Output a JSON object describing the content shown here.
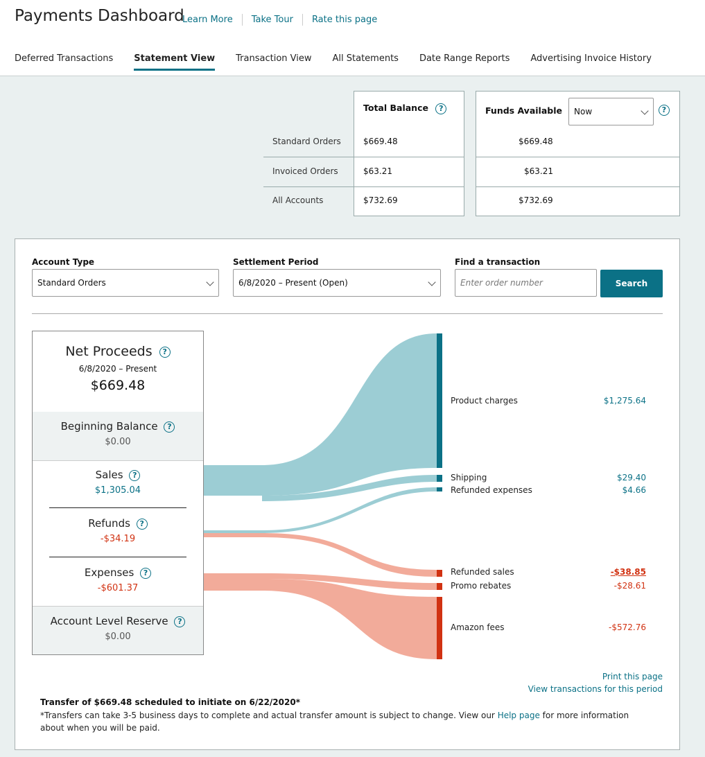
{
  "header": {
    "title": "Payments Dashboard",
    "links": [
      "Learn More",
      "Take Tour",
      "Rate this page"
    ],
    "tabs": [
      "Deferred Transactions",
      "Statement View",
      "Transaction View",
      "All Statements",
      "Date Range Reports",
      "Advertising Invoice History"
    ],
    "active_tab": "Statement View"
  },
  "balances": {
    "total_balance_label": "Total Balance",
    "funds_available_label": "Funds Available",
    "funds_select": "Now",
    "rows": [
      {
        "label": "Standard Orders",
        "total": "$669.48",
        "funds": "$669.48"
      },
      {
        "label": "Invoiced Orders",
        "total": "$63.21",
        "funds": "$63.21"
      },
      {
        "label": "All Accounts",
        "total": "$732.69",
        "funds": "$732.69"
      }
    ]
  },
  "filters": {
    "account_type_label": "Account Type",
    "account_type_value": "Standard Orders",
    "settlement_period_label": "Settlement Period",
    "settlement_period_value": "6/8/2020 – Present (Open)",
    "find_label": "Find a transaction",
    "find_placeholder": "Enter order number",
    "search_button": "Search"
  },
  "summary": {
    "net_proceeds_label": "Net Proceeds",
    "net_proceeds_period": "6/8/2020 – Present",
    "net_proceeds_value": "$669.48",
    "beginning_balance_label": "Beginning Balance",
    "beginning_balance_value": "$0.00",
    "sales_label": "Sales",
    "sales_value": "$1,305.04",
    "refunds_label": "Refunds",
    "refunds_value": "-$34.19",
    "expenses_label": "Expenses",
    "expenses_value": "-$601.37",
    "reserve_label": "Account Level Reserve",
    "reserve_value": "$0.00"
  },
  "breakdown": [
    {
      "label": "Product charges",
      "value": "$1,275.64"
    },
    {
      "label": "Shipping",
      "value": "$29.40"
    },
    {
      "label": "Refunded expenses",
      "value": "$4.66"
    },
    {
      "label": "Refunded sales",
      "value": "-$38.85"
    },
    {
      "label": "Promo rebates",
      "value": "-$28.61"
    },
    {
      "label": "Amazon fees",
      "value": "-$572.76"
    }
  ],
  "colors": {
    "accent": "#0b7186",
    "negative": "#d13212",
    "flow_positive": "#9ccdd4",
    "flow_negative": "#f2ab9a"
  },
  "footer": {
    "print_link": "Print this page",
    "view_link": "View transactions for this period",
    "transfer_text": "Transfer of $669.48 scheduled to initiate on 6/22/2020*",
    "note_before": "*Transfers can take 3-5 business days to complete and actual transfer amount is subject to change. View our ",
    "note_link": "Help page",
    "note_after": " for more information about when you will be paid."
  }
}
